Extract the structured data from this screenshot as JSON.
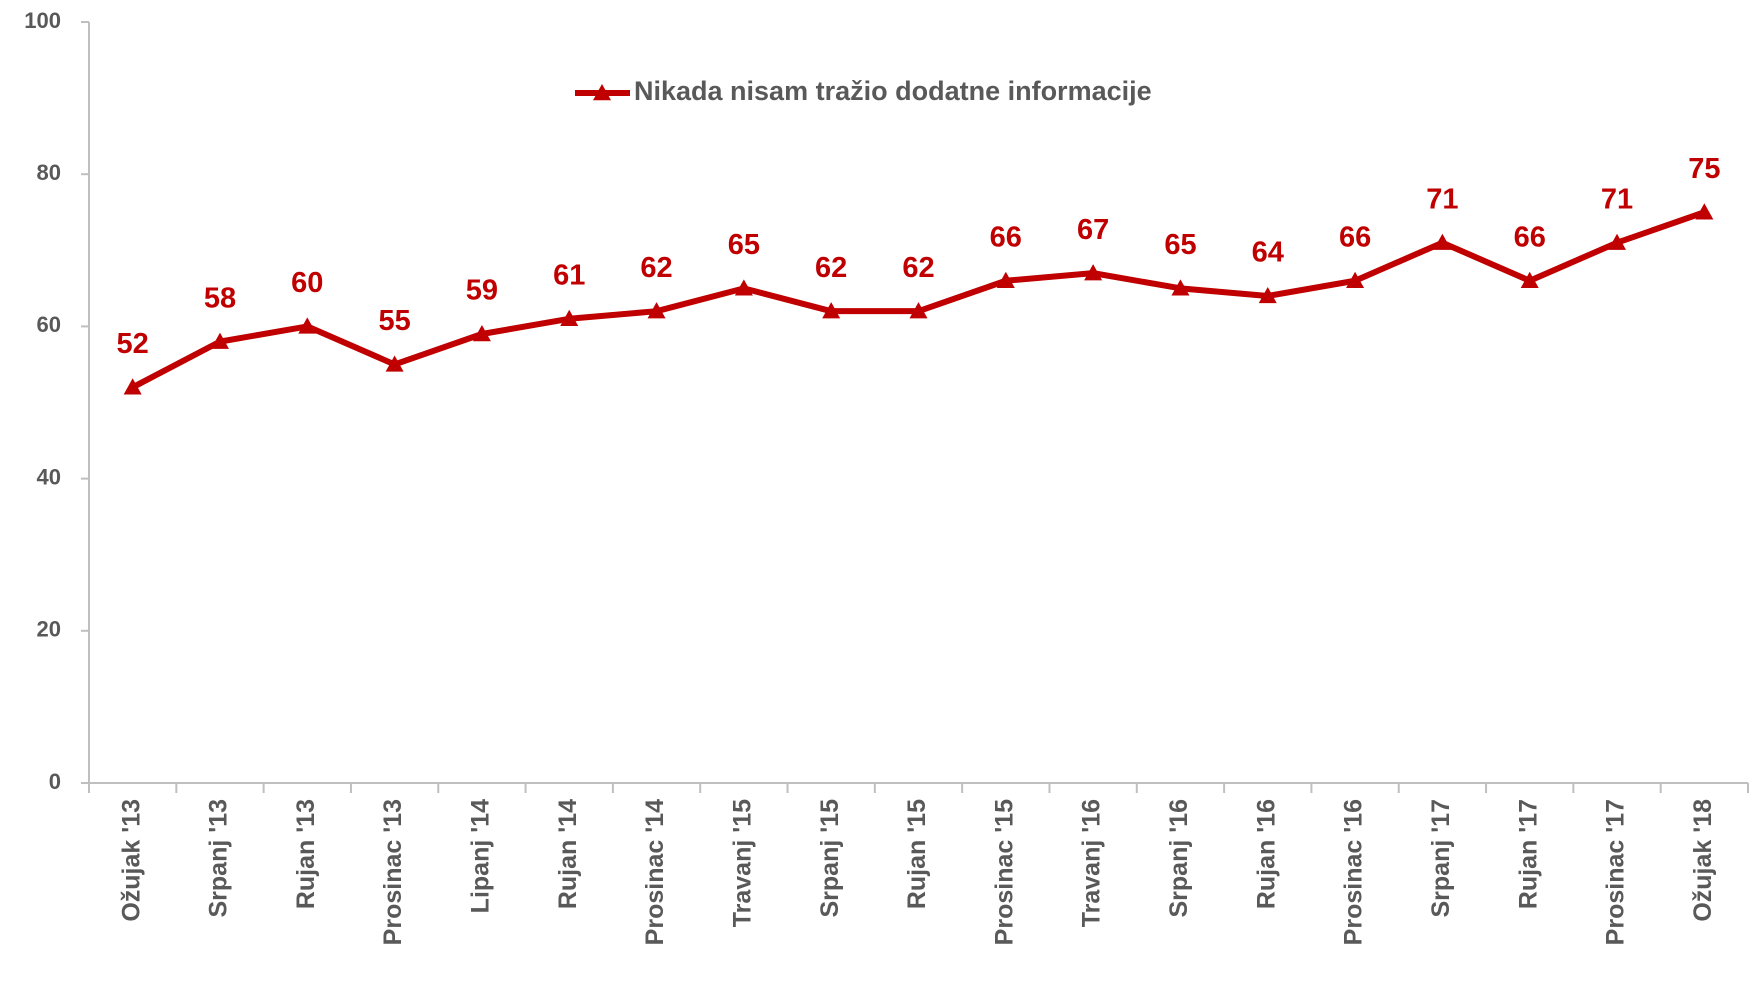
{
  "chart_data": {
    "type": "line",
    "categories": [
      "Ožujak '13",
      "Srpanj '13",
      "Rujan '13",
      "Prosinac '13",
      "Lipanj '14",
      "Rujan '14",
      "Prosinac '14",
      "Travanj '15",
      "Srpanj '15",
      "Rujan '15",
      "Prosinac '15",
      "Travanj '16",
      "Srpanj '16",
      "Rujan '16",
      "Prosinac '16",
      "Srpanj '17",
      "Rujan '17",
      "Prosinac '17",
      "Ožujak '18"
    ],
    "series": [
      {
        "name": "Nikada nisam tražio dodatne informacije",
        "color": "#c00000",
        "values": [
          52,
          58,
          60,
          55,
          59,
          61,
          62,
          65,
          62,
          62,
          66,
          67,
          65,
          64,
          66,
          71,
          66,
          71,
          75
        ]
      }
    ],
    "ylim": [
      0,
      100
    ],
    "yticks": [
      0,
      20,
      40,
      60,
      80,
      100
    ],
    "grid": false,
    "legend": "top"
  }
}
